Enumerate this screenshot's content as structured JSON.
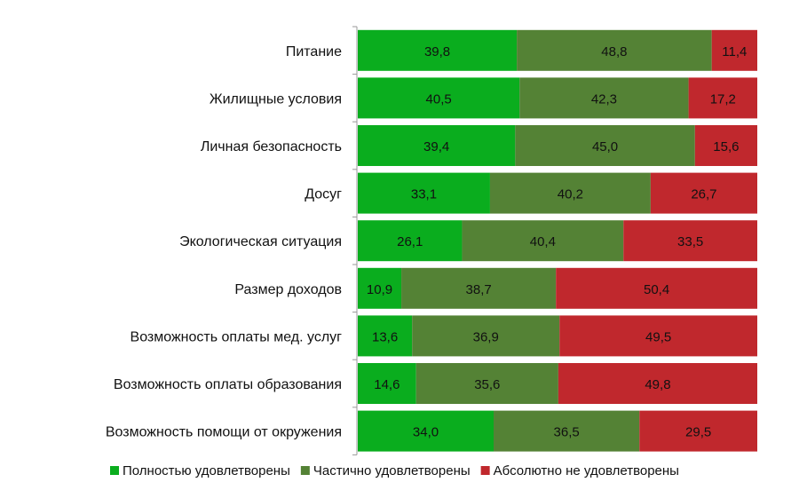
{
  "chart_data": {
    "type": "bar",
    "orientation": "horizontal",
    "stacked": "percent",
    "categories": [
      "Питание",
      "Жилищные условия",
      "Личная безопасность",
      "Досуг",
      "Экологическая ситуация",
      "Размер доходов",
      "Возможность оплаты мед. услуг",
      "Возможность оплаты образования",
      "Возможность помощи от окружения"
    ],
    "series": [
      {
        "name": "Полностью удовлетворены",
        "color": "#0aad1e",
        "values": [
          39.8,
          40.5,
          39.4,
          33.1,
          26.1,
          10.9,
          13.6,
          14.6,
          34.0
        ]
      },
      {
        "name": "Частично удовлетворены",
        "color": "#548235",
        "values": [
          48.8,
          42.3,
          45.0,
          40.2,
          40.4,
          38.7,
          36.9,
          35.6,
          36.5
        ]
      },
      {
        "name": "Абсолютно не удовлетворены",
        "color": "#c0282d",
        "values": [
          11.4,
          17.2,
          15.6,
          26.7,
          33.5,
          50.4,
          49.5,
          49.8,
          29.5
        ]
      }
    ],
    "data_labels": true,
    "decimal_separator": ",",
    "xlim": [
      0,
      100
    ],
    "grid": false,
    "legend": "bottom"
  }
}
